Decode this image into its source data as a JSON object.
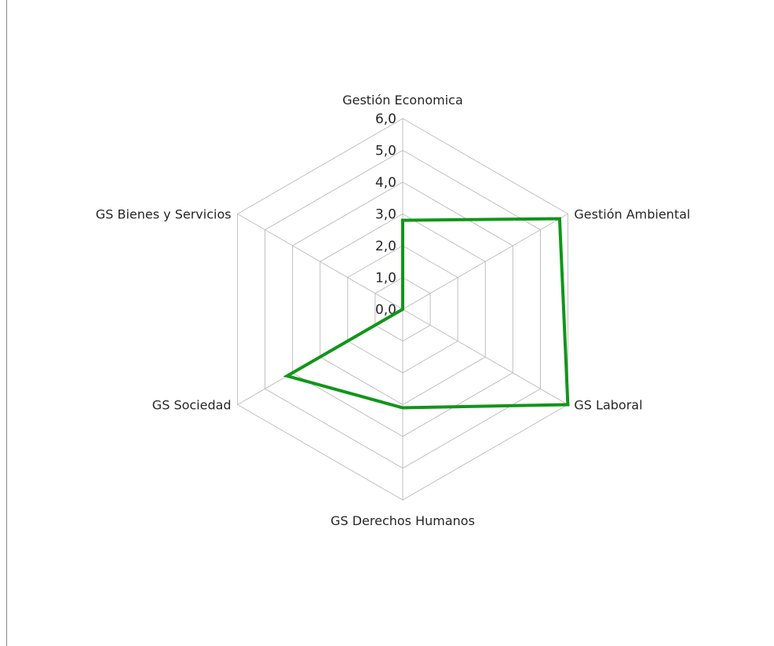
{
  "chart_data": {
    "type": "radar",
    "categories": [
      "Gestión Economica",
      "Gestión Ambiental",
      "GS Laboral",
      "GS Derechos Humanos",
      "GS Sociedad",
      "GS Bienes y Servicios"
    ],
    "series": [
      {
        "values": [
          2.8,
          5.7,
          6.0,
          3.1,
          4.2,
          0.0
        ],
        "color": "#109618"
      }
    ],
    "rlim": [
      0,
      6
    ],
    "ticks": [
      "0,0",
      "1,0",
      "2,0",
      "3,0",
      "4,0",
      "5,0",
      "6,0"
    ],
    "grid": true,
    "legend": "none",
    "colors": {
      "grid": "#bfbfbf",
      "text": "#262626"
    }
  }
}
